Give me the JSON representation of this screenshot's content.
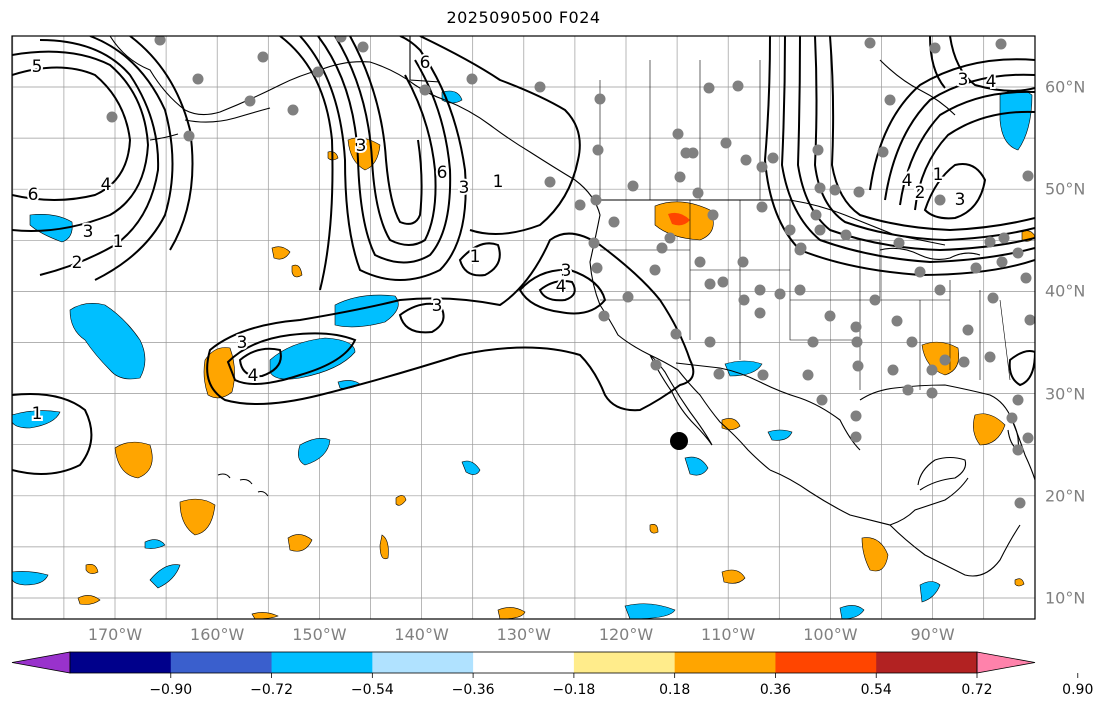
{
  "title": "2025090500 F024",
  "lat_labels": [
    {
      "text": "60°N",
      "lat": 60
    },
    {
      "text": "50°N",
      "lat": 50
    },
    {
      "text": "40°N",
      "lat": 40
    },
    {
      "text": "30°N",
      "lat": 30
    },
    {
      "text": "20°N",
      "lat": 20
    },
    {
      "text": "10°N",
      "lat": 10
    }
  ],
  "lon_labels": [
    {
      "text": "170°W",
      "lon": -170
    },
    {
      "text": "160°W",
      "lon": -160
    },
    {
      "text": "150°W",
      "lon": -150
    },
    {
      "text": "140°W",
      "lon": -140
    },
    {
      "text": "130°W",
      "lon": -130
    },
    {
      "text": "120°W",
      "lon": -120
    },
    {
      "text": "110°W",
      "lon": -110
    },
    {
      "text": "100°W",
      "lon": -100
    },
    {
      "text": "90°W",
      "lon": -90
    }
  ],
  "colorbar": {
    "colors": [
      "#9932cc",
      "#00008b",
      "#3a5fcd",
      "#00bfff",
      "#b0e2ff",
      "#ffffff",
      "#ffec8b",
      "#ffa500",
      "#ff4500",
      "#b22222",
      "#ff82ab"
    ],
    "ticks": [
      "−0.90",
      "−0.72",
      "−0.54",
      "−0.36",
      "−0.18",
      "0.18",
      "0.36",
      "0.54",
      "0.72",
      "0.90"
    ]
  },
  "contour_labels": [
    "5",
    "6",
    "4",
    "3",
    "2",
    "1",
    "3",
    "4",
    "3",
    "3",
    "1",
    "1",
    "6",
    "3",
    "6",
    "3",
    "1",
    "3",
    "4",
    "2",
    "1",
    "4",
    "3",
    "4"
  ],
  "colors": {
    "positive": "#ffa500",
    "positive_strong": "#ff4500",
    "negative": "#00bfff",
    "grid": "#999999",
    "station": "#808080",
    "marker": "#000000"
  }
}
